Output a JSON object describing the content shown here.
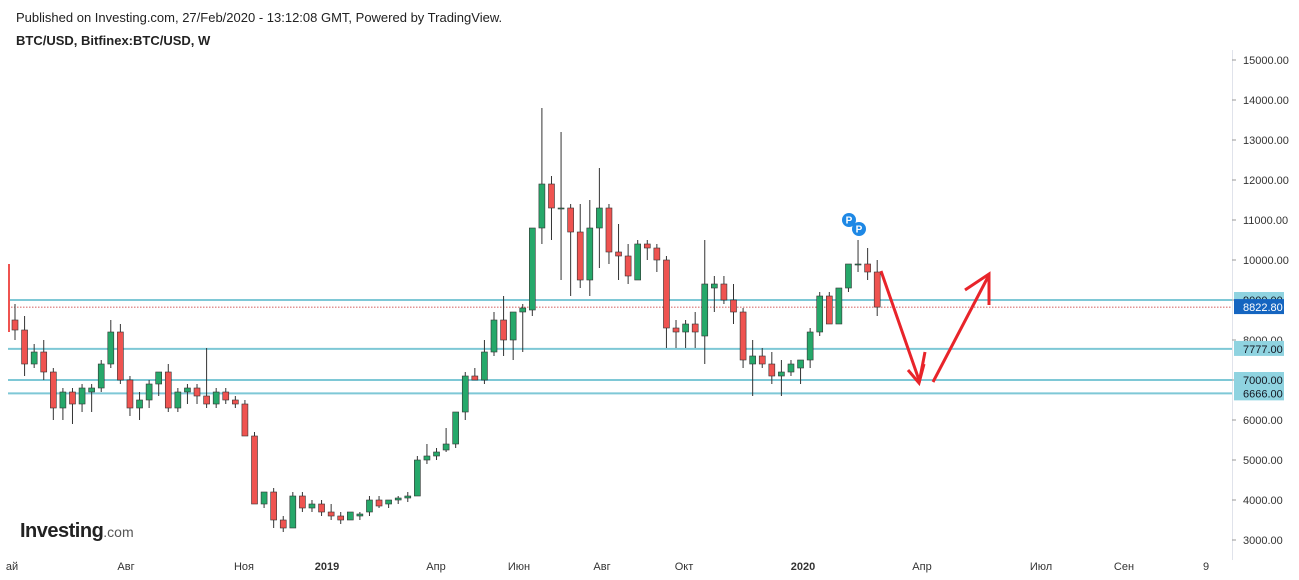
{
  "header": {
    "published": "Published on Investing.com, 27/Feb/2020 - 13:12:08 GMT, Powered by TradingView.",
    "symbol": "BTC/USD, Bitfinex:BTC/USD, W"
  },
  "logo": {
    "main": "Investing",
    "suffix": ".com"
  },
  "colors": {
    "up": "#26a86a",
    "down": "#ef5350",
    "level": "#7ec8d6",
    "arrow": "#e8242a",
    "badge_blue": "#1e88e5"
  },
  "chart_data": {
    "type": "candlestick",
    "title": "BTC/USD, Bitfinex:BTC/USD, W",
    "ylim": [
      2800,
      15200
    ],
    "y_ticks": [
      "3000.00",
      "4000.00",
      "5000.00",
      "6000.00",
      "7000.00",
      "8000.00",
      "9000.00",
      "10000.00",
      "11000.00",
      "12000.00",
      "13000.00",
      "14000.00",
      "15000.00"
    ],
    "x_labels": [
      "ай",
      "Авг",
      "Ноя",
      "2019",
      "Апр",
      "Июн",
      "Авг",
      "Окт",
      "2020",
      "Апр",
      "Июл",
      "Сен",
      "9"
    ],
    "horizontal_levels": [
      {
        "value": 9000,
        "label": "9000.00"
      },
      {
        "value": 7777,
        "label": "7777.00"
      },
      {
        "value": 7000,
        "label": "7000.00"
      },
      {
        "value": 6666,
        "label": "6666.00"
      }
    ],
    "last_price": {
      "value": 8822.8,
      "label": "8822.80"
    },
    "markers": [
      "P",
      "P"
    ],
    "candles": [
      [
        8500,
        8900,
        8000,
        8250
      ],
      [
        8250,
        8600,
        7100,
        7400
      ],
      [
        7400,
        7900,
        7300,
        7700
      ],
      [
        7700,
        8000,
        7000,
        7200
      ],
      [
        7200,
        7300,
        6000,
        6300
      ],
      [
        6300,
        6800,
        6000,
        6700
      ],
      [
        6700,
        6800,
        5900,
        6400
      ],
      [
        6400,
        6900,
        6200,
        6800
      ],
      [
        6700,
        6900,
        6200,
        6800
      ],
      [
        6800,
        7500,
        6700,
        7400
      ],
      [
        7400,
        8500,
        7300,
        8200
      ],
      [
        8200,
        8400,
        6900,
        7000
      ],
      [
        7000,
        7100,
        6100,
        6300
      ],
      [
        6300,
        6700,
        6000,
        6500
      ],
      [
        6500,
        7000,
        6300,
        6900
      ],
      [
        6900,
        7200,
        6600,
        7200
      ],
      [
        7200,
        7400,
        6200,
        6300
      ],
      [
        6300,
        6800,
        6200,
        6700
      ],
      [
        6700,
        6900,
        6400,
        6800
      ],
      [
        6800,
        6900,
        6400,
        6600
      ],
      [
        6600,
        7800,
        6300,
        6400
      ],
      [
        6400,
        6800,
        6300,
        6700
      ],
      [
        6700,
        6800,
        6400,
        6500
      ],
      [
        6500,
        6600,
        6300,
        6400
      ],
      [
        6400,
        6500,
        5700,
        5600
      ],
      [
        5600,
        5700,
        3900,
        3900
      ],
      [
        3900,
        4200,
        3800,
        4200
      ],
      [
        4200,
        4300,
        3300,
        3500
      ],
      [
        3500,
        3600,
        3200,
        3300
      ],
      [
        3300,
        4200,
        3300,
        4100
      ],
      [
        4100,
        4200,
        3700,
        3800
      ],
      [
        3800,
        4000,
        3700,
        3900
      ],
      [
        3900,
        4000,
        3600,
        3700
      ],
      [
        3700,
        3900,
        3500,
        3600
      ],
      [
        3600,
        3700,
        3400,
        3500
      ],
      [
        3500,
        3700,
        3500,
        3700
      ],
      [
        3600,
        3700,
        3500,
        3650
      ],
      [
        3700,
        4100,
        3600,
        4000
      ],
      [
        4000,
        4100,
        3800,
        3850
      ],
      [
        3900,
        4000,
        3800,
        4000
      ],
      [
        4000,
        4100,
        3900,
        4050
      ],
      [
        4050,
        4200,
        3950,
        4100
      ],
      [
        4100,
        5100,
        4100,
        5000
      ],
      [
        5000,
        5400,
        4900,
        5100
      ],
      [
        5100,
        5300,
        5000,
        5200
      ],
      [
        5250,
        5800,
        5200,
        5400
      ],
      [
        5400,
        6200,
        5300,
        6200
      ],
      [
        6200,
        7200,
        6000,
        7100
      ],
      [
        7100,
        7300,
        7000,
        7000
      ],
      [
        7000,
        8000,
        6900,
        7700
      ],
      [
        7700,
        8700,
        7600,
        8500
      ],
      [
        8500,
        9100,
        7600,
        8000
      ],
      [
        8000,
        8700,
        7500,
        8700
      ],
      [
        8700,
        8900,
        7700,
        8800
      ],
      [
        8750,
        10800,
        8600,
        10800
      ],
      [
        10800,
        13800,
        10400,
        11900
      ],
      [
        11900,
        12100,
        10500,
        11300
      ],
      [
        11300,
        13200,
        9500,
        11300
      ],
      [
        11300,
        11400,
        9100,
        10700
      ],
      [
        10700,
        11400,
        9300,
        9500
      ],
      [
        9500,
        11500,
        9100,
        10800
      ],
      [
        10800,
        12300,
        9800,
        11300
      ],
      [
        11300,
        11400,
        9900,
        10200
      ],
      [
        10200,
        10900,
        9500,
        10100
      ],
      [
        10100,
        10400,
        9400,
        9600
      ],
      [
        9500,
        10500,
        9500,
        10400
      ],
      [
        10400,
        10500,
        10000,
        10300
      ],
      [
        10300,
        10400,
        9700,
        10000
      ],
      [
        10000,
        10100,
        7800,
        8300
      ],
      [
        8300,
        8500,
        7800,
        8200
      ],
      [
        8200,
        8500,
        7800,
        8400
      ],
      [
        8400,
        8700,
        7800,
        8200
      ],
      [
        8100,
        10500,
        7400,
        9400
      ],
      [
        9300,
        9600,
        8700,
        9400
      ],
      [
        9400,
        9600,
        8900,
        9000
      ],
      [
        9000,
        9400,
        8400,
        8700
      ],
      [
        8700,
        8800,
        7300,
        7500
      ],
      [
        7400,
        8000,
        6600,
        7600
      ],
      [
        7600,
        7800,
        7300,
        7400
      ],
      [
        7400,
        7700,
        6900,
        7100
      ],
      [
        7100,
        7500,
        6600,
        7200
      ],
      [
        7200,
        7500,
        7100,
        7400
      ],
      [
        7300,
        7500,
        6900,
        7500
      ],
      [
        7500,
        8300,
        7300,
        8200
      ],
      [
        8200,
        9200,
        8100,
        9100
      ],
      [
        9100,
        9200,
        8400,
        8400
      ],
      [
        8400,
        9300,
        8400,
        9300
      ],
      [
        9300,
        9900,
        9200,
        9900
      ],
      [
        9900,
        10500,
        9700,
        9900
      ],
      [
        9900,
        10300,
        9500,
        9700
      ],
      [
        9700,
        10000,
        8600,
        8822.8
      ]
    ]
  },
  "annotation": "arrow path: down then up"
}
